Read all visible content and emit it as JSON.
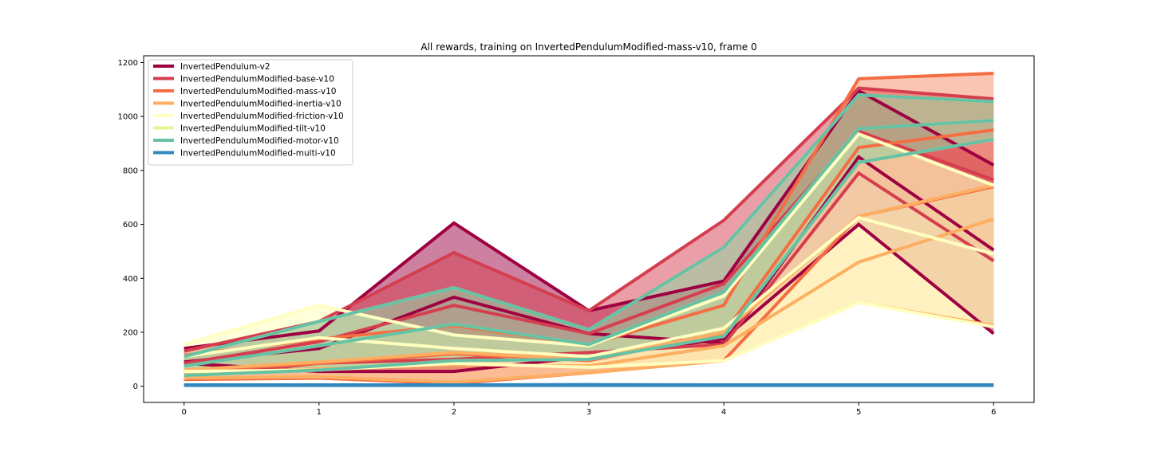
{
  "chart_data": {
    "type": "line",
    "title": "All rewards, training on InvertedPendulumModified-mass-v10, frame 0",
    "xlabel": "",
    "ylabel": "",
    "x": [
      0,
      1,
      2,
      3,
      4,
      5,
      6
    ],
    "xlim": [
      -0.3,
      6.3
    ],
    "ylim": [
      -60,
      1225
    ],
    "yticks": [
      0,
      200,
      400,
      600,
      800,
      1000,
      1200
    ],
    "xticks": [
      0,
      1,
      2,
      3,
      4,
      5,
      6
    ],
    "grid": false,
    "legend_position": "top-left",
    "series": [
      {
        "name": "InvertedPendulum-v2",
        "color": "#9e0142",
        "fill_opacity": 0.5,
        "upper": [
          140,
          205,
          605,
          280,
          390,
          1095,
          820
        ],
        "mean": [
          90,
          140,
          330,
          195,
          160,
          850,
          505
        ],
        "lower": [
          85,
          55,
          55,
          110,
          175,
          600,
          195
        ]
      },
      {
        "name": "InvertedPendulumModified-base-v10",
        "color": "#d53e4f",
        "fill_opacity": 0.5,
        "upper": [
          130,
          240,
          495,
          280,
          615,
          1105,
          1065
        ],
        "mean": [
          85,
          165,
          300,
          195,
          380,
          945,
          765
        ],
        "lower": [
          35,
          85,
          100,
          125,
          155,
          790,
          465
        ]
      },
      {
        "name": "InvertedPendulumModified-mass-v10",
        "color": "#f46d43",
        "fill_opacity": 0.4,
        "upper": [
          115,
          175,
          225,
          155,
          300,
          1140,
          1160
        ],
        "mean": [
          55,
          85,
          120,
          95,
          195,
          885,
          950
        ],
        "lower": [
          25,
          30,
          10,
          50,
          95,
          630,
          740
        ]
      },
      {
        "name": "InvertedPendulumModified-inertia-v10",
        "color": "#fdae61",
        "fill_opacity": 0.4,
        "upper": [
          60,
          90,
          125,
          100,
          200,
          630,
          745
        ],
        "mean": [
          45,
          65,
          80,
          75,
          150,
          460,
          620
        ],
        "lower": [
          30,
          35,
          15,
          50,
          95,
          310,
          225
        ]
      },
      {
        "name": "InvertedPendulumModified-friction-v10",
        "color": "#ffffbf",
        "fill_opacity": 0.6,
        "upper": [
          155,
          300,
          190,
          150,
          335,
          935,
          745
        ],
        "mean": [
          110,
          180,
          140,
          110,
          215,
          625,
          490
        ],
        "lower": [
          55,
          60,
          85,
          70,
          95,
          310,
          220
        ]
      },
      {
        "name": "InvertedPendulumModified-tilt-v10",
        "color": "#e6f598",
        "fill_opacity": 0.3,
        "upper": [
          110,
          240,
          365,
          210,
          515,
          1080,
          1055
        ],
        "mean": [
          75,
          150,
          230,
          155,
          350,
          955,
          985
        ],
        "lower": [
          40,
          60,
          95,
          100,
          185,
          830,
          915
        ]
      },
      {
        "name": "InvertedPendulumModified-motor-v10",
        "color": "#66c2a5",
        "fill_opacity": 0.35,
        "upper": [
          110,
          240,
          365,
          210,
          515,
          1080,
          1055
        ],
        "mean": [
          75,
          150,
          230,
          155,
          350,
          955,
          985
        ],
        "lower": [
          40,
          60,
          95,
          100,
          185,
          830,
          915
        ]
      },
      {
        "name": "InvertedPendulumModified-multi-v10",
        "color": "#3288bd",
        "fill_opacity": 0.5,
        "upper": [
          5,
          5,
          5,
          6,
          5,
          5,
          5
        ],
        "mean": [
          4,
          4,
          4,
          5,
          4,
          4,
          4
        ],
        "lower": [
          3,
          3,
          3,
          3,
          3,
          3,
          3
        ]
      }
    ]
  }
}
